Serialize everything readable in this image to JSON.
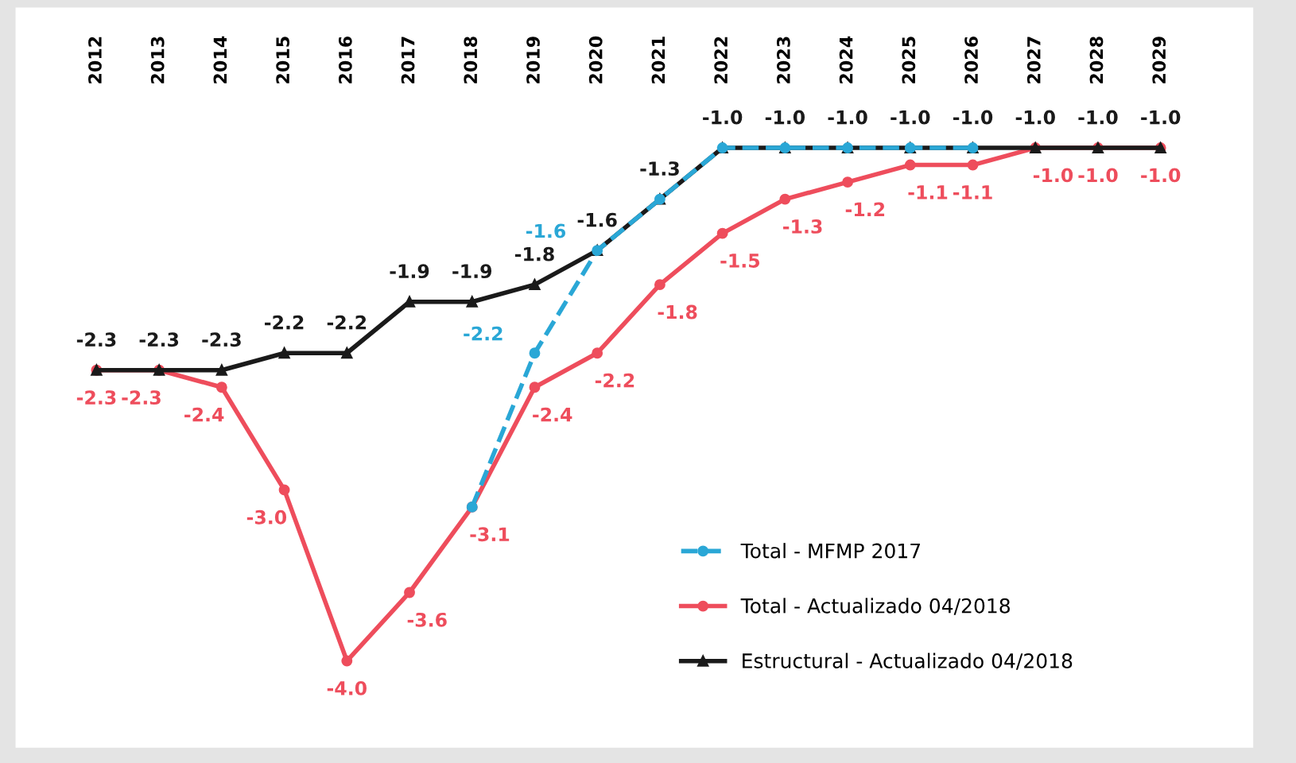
{
  "chart_data": {
    "type": "line",
    "categories": [
      "2012",
      "2013",
      "2014",
      "2015",
      "2016",
      "2017",
      "2018",
      "2019",
      "2020",
      "2021",
      "2022",
      "2023",
      "2024",
      "2025",
      "2026",
      "2027",
      "2028",
      "2029"
    ],
    "series": [
      {
        "name": "Total - MFMP 2017",
        "color": "#2aa7d6",
        "line_style": "dashed",
        "marker": "circle",
        "values": [
          null,
          null,
          null,
          null,
          null,
          null,
          -3.1,
          -2.2,
          -1.6,
          -1.3,
          -1.0,
          -1.0,
          -1.0,
          -1.0,
          -1.0,
          null,
          null,
          null
        ],
        "value_labels": [
          null,
          null,
          null,
          null,
          null,
          null,
          null,
          "-2.2",
          "-1.6",
          null,
          null,
          null,
          null,
          null,
          null,
          null,
          null,
          null
        ]
      },
      {
        "name": "Total - Actualizado 04/2018",
        "color": "#ee4d5c",
        "line_style": "solid",
        "marker": "circle",
        "values": [
          -2.3,
          -2.3,
          -2.4,
          -3.0,
          -4.0,
          -3.6,
          -3.1,
          -2.4,
          -2.2,
          -1.8,
          -1.5,
          -1.3,
          -1.2,
          -1.1,
          -1.1,
          -1.0,
          -1.0,
          -1.0
        ],
        "value_labels": [
          "-2.3",
          "-2.3",
          "-2.4",
          "-3.0",
          "-4.0",
          "-3.6",
          "-3.1",
          "-2.4",
          "-2.2",
          "-1.8",
          "-1.5",
          "-1.3",
          "-1.2",
          "-1.1",
          "-1.1",
          "-1.0",
          "-1.0",
          "-1.0"
        ]
      },
      {
        "name": "Estructural - Actualizado 04/2018",
        "color": "#1a1a1a",
        "line_style": "solid",
        "marker": "triangle",
        "values": [
          -2.3,
          -2.3,
          -2.3,
          -2.2,
          -2.2,
          -1.9,
          -1.9,
          -1.8,
          -1.6,
          -1.3,
          -1.0,
          -1.0,
          -1.0,
          -1.0,
          -1.0,
          -1.0,
          -1.0,
          -1.0
        ],
        "value_labels": [
          "-2.3",
          "-2.3",
          "-2.3",
          "-2.2",
          "-2.2",
          "-1.9",
          "-1.9",
          "-1.8",
          "-1.6",
          "-1.3",
          "-1.0",
          "-1.0",
          "-1.0",
          "-1.0",
          "-1.0",
          "-1.0",
          "-1.0",
          "-1.0"
        ]
      }
    ],
    "tick_labels": "x",
    "grid": false,
    "legend": "bottom right"
  }
}
